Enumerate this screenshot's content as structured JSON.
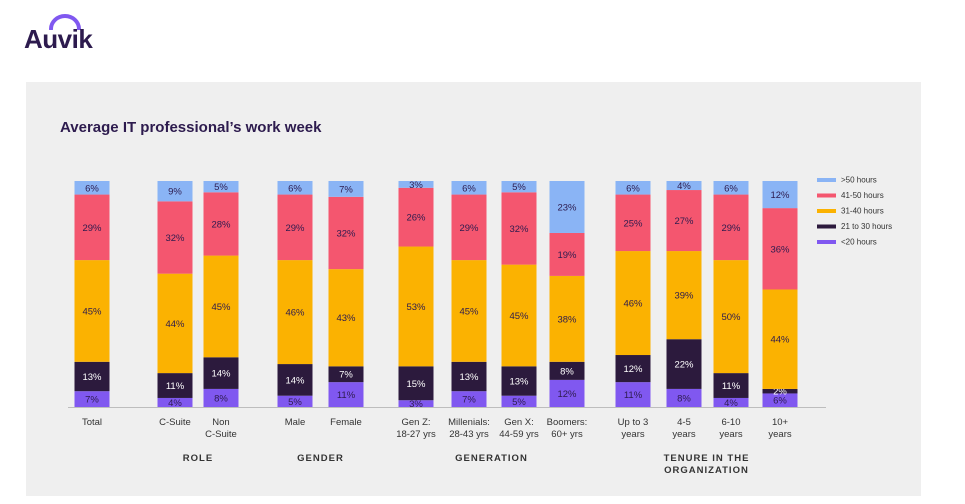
{
  "brand": {
    "logo_text": "Auvik"
  },
  "colors": {
    "gt50": "#8ab4f5",
    "h41_50": "#f4566f",
    "h31_40": "#fbb201",
    "h21_30": "#2c1a3d",
    "lt20": "#8058f0",
    "text": "#2d1b4e",
    "panel": "#efefef"
  },
  "chart_data": {
    "type": "bar",
    "stacked": true,
    "title": "Average IT professional’s work week",
    "units": "%",
    "ylim": [
      0,
      100
    ],
    "grid": false,
    "legend_position": "right",
    "legend": [
      ">50 hours",
      "41-50 hours",
      "31-40 hours",
      "21 to 30 hours",
      "<20 hours"
    ],
    "stack_order_bottom_to_top": [
      "<20 hours",
      "21 to 30 hours",
      "31-40 hours",
      "41-50 hours",
      ">50 hours"
    ],
    "groups": [
      {
        "name": "",
        "categories": [
          {
            "label": [
              "Total"
            ],
            "values": [
              7,
              13,
              45,
              29,
              6
            ]
          }
        ]
      },
      {
        "name": "ROLE",
        "categories": [
          {
            "label": [
              "C-Suite"
            ],
            "values": [
              4,
              11,
              44,
              32,
              9
            ]
          },
          {
            "label": [
              "Non",
              "C-Suite"
            ],
            "values": [
              8,
              14,
              45,
              28,
              5
            ]
          }
        ]
      },
      {
        "name": "GENDER",
        "categories": [
          {
            "label": [
              "Male"
            ],
            "values": [
              5,
              14,
              46,
              29,
              6
            ]
          },
          {
            "label": [
              "Female"
            ],
            "values": [
              11,
              7,
              43,
              32,
              7
            ]
          }
        ]
      },
      {
        "name": "GENERATION",
        "categories": [
          {
            "label": [
              "Gen Z:",
              "18-27 yrs"
            ],
            "values": [
              3,
              15,
              53,
              26,
              3
            ]
          },
          {
            "label": [
              "Millenials:",
              "28-43 yrs"
            ],
            "values": [
              7,
              13,
              45,
              29,
              6
            ]
          },
          {
            "label": [
              "Gen X:",
              "44-59 yrs"
            ],
            "values": [
              5,
              13,
              45,
              32,
              5
            ]
          },
          {
            "label": [
              "Boomers:",
              "60+ yrs"
            ],
            "values": [
              12,
              8,
              38,
              19,
              23
            ]
          }
        ]
      },
      {
        "name": "TENURE IN THE ORGANIZATION",
        "name_lines": [
          "TENURE IN THE",
          "ORGANIZATION"
        ],
        "categories": [
          {
            "label": [
              "Up to 3",
              "years"
            ],
            "values": [
              11,
              12,
              46,
              25,
              6
            ]
          },
          {
            "label": [
              "4-5",
              "years"
            ],
            "values": [
              8,
              22,
              39,
              27,
              4
            ]
          },
          {
            "label": [
              "6-10",
              "years"
            ],
            "values": [
              4,
              11,
              50,
              29,
              6
            ]
          },
          {
            "label": [
              "10+",
              "years"
            ],
            "values": [
              6,
              2,
              44,
              36,
              12
            ]
          }
        ]
      }
    ]
  }
}
